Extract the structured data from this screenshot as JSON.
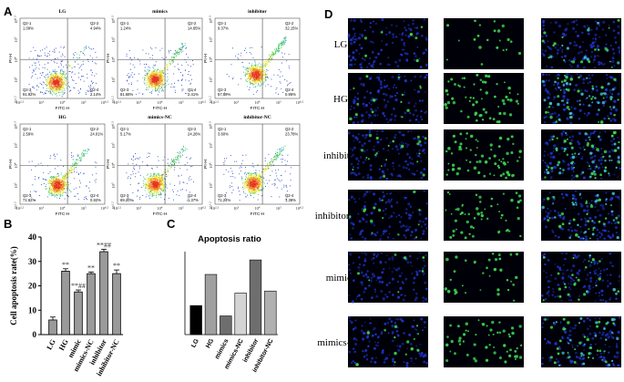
{
  "panel_labels": {
    "A": "A",
    "B": "B",
    "C": "C",
    "D": "D"
  },
  "flow": {
    "y_axis_label": "PI-H",
    "x_axis_label": "FITC-H",
    "x_ticks": [
      "10^2.2",
      "10^3",
      "10^4",
      "10^5",
      "10^6.2"
    ],
    "y_ticks": [
      "10^1.2",
      "10^3",
      "10^4",
      "10^5",
      "10^6.3"
    ],
    "quadrant_names": [
      "Q2-1",
      "Q2-2",
      "Q2-3",
      "Q2-4"
    ],
    "plots": [
      {
        "title": "LG",
        "q1": "1.09%",
        "q2": "4.94%",
        "q3": "91.92%",
        "q4": "2.14%"
      },
      {
        "title": "mimics",
        "q1": "1.24%",
        "q2": "14.65%",
        "q3": "81.58%",
        "q4": "2.41%"
      },
      {
        "title": "inhibitor",
        "q1": "9.37%",
        "q2": "32.15%",
        "q3": "57.59%",
        "q4": "0.95%"
      },
      {
        "title": "HG",
        "q1": "2.59%",
        "q2": "24.01%",
        "q3": "71.62%",
        "q4": "0.82%"
      },
      {
        "title": "mimics-NC",
        "q1": "5.17%",
        "q2": "24.26%",
        "q3": "69.20%",
        "q4": "1.37%"
      },
      {
        "title": "inhibitor-NC",
        "q1": "3.60%",
        "q2": "23.78%",
        "q3": "71.24%",
        "q4": "1.38%"
      }
    ]
  },
  "chart_data": [
    {
      "type": "bar",
      "panel": "B",
      "ylabel": "Cell apoptosis rate(%)",
      "ylim": [
        0,
        40
      ],
      "yticks": [
        0,
        10,
        20,
        30,
        40
      ],
      "categories": [
        "LG",
        "HG",
        "mimic",
        "mimics-NC",
        "inhibitor",
        "inhibitor-NC"
      ],
      "values": [
        6,
        26,
        17.5,
        25,
        34,
        25
      ],
      "errors": [
        1.2,
        1.0,
        0.8,
        0.7,
        1.0,
        1.5
      ],
      "annotations": [
        "",
        "**",
        "**##",
        "**",
        "**##",
        "**"
      ],
      "colors": [
        "#9a9a9a",
        "#9a9a9a",
        "#9a9a9a",
        "#9a9a9a",
        "#9a9a9a",
        "#9a9a9a"
      ]
    },
    {
      "type": "bar",
      "panel": "C",
      "title": "Apoptosis ratio",
      "ylim": [
        0,
        0.8
      ],
      "yticks": [
        0,
        0.2,
        0.4,
        0.6,
        0.8
      ],
      "categories": [
        "LG",
        "HG",
        "mimics",
        "mimics-NC",
        "inhibitor",
        "inhibitor-NC"
      ],
      "values": [
        0.28,
        0.58,
        0.18,
        0.4,
        0.72,
        0.42
      ],
      "colors": [
        "#000000",
        "#a0a0a0",
        "#6e6e6e",
        "#d4d4d4",
        "#6e6e6e",
        "#b0b0b0"
      ]
    }
  ],
  "microscopy": {
    "row_labels": [
      "LG",
      "HG",
      "inhibitor",
      "inhibitor-NC",
      "mimics",
      "mimics-NC"
    ],
    "green_density": [
      [
        1,
        3,
        4
      ],
      [
        2,
        9,
        10
      ],
      [
        3,
        10,
        10
      ],
      [
        2,
        8,
        8
      ],
      [
        1,
        5,
        4
      ],
      [
        2,
        8,
        8
      ]
    ],
    "colors": {
      "background": "#000008",
      "nuclei": "#2036d0",
      "tunel": "#3cd050",
      "merge": "#40b8c8"
    }
  }
}
